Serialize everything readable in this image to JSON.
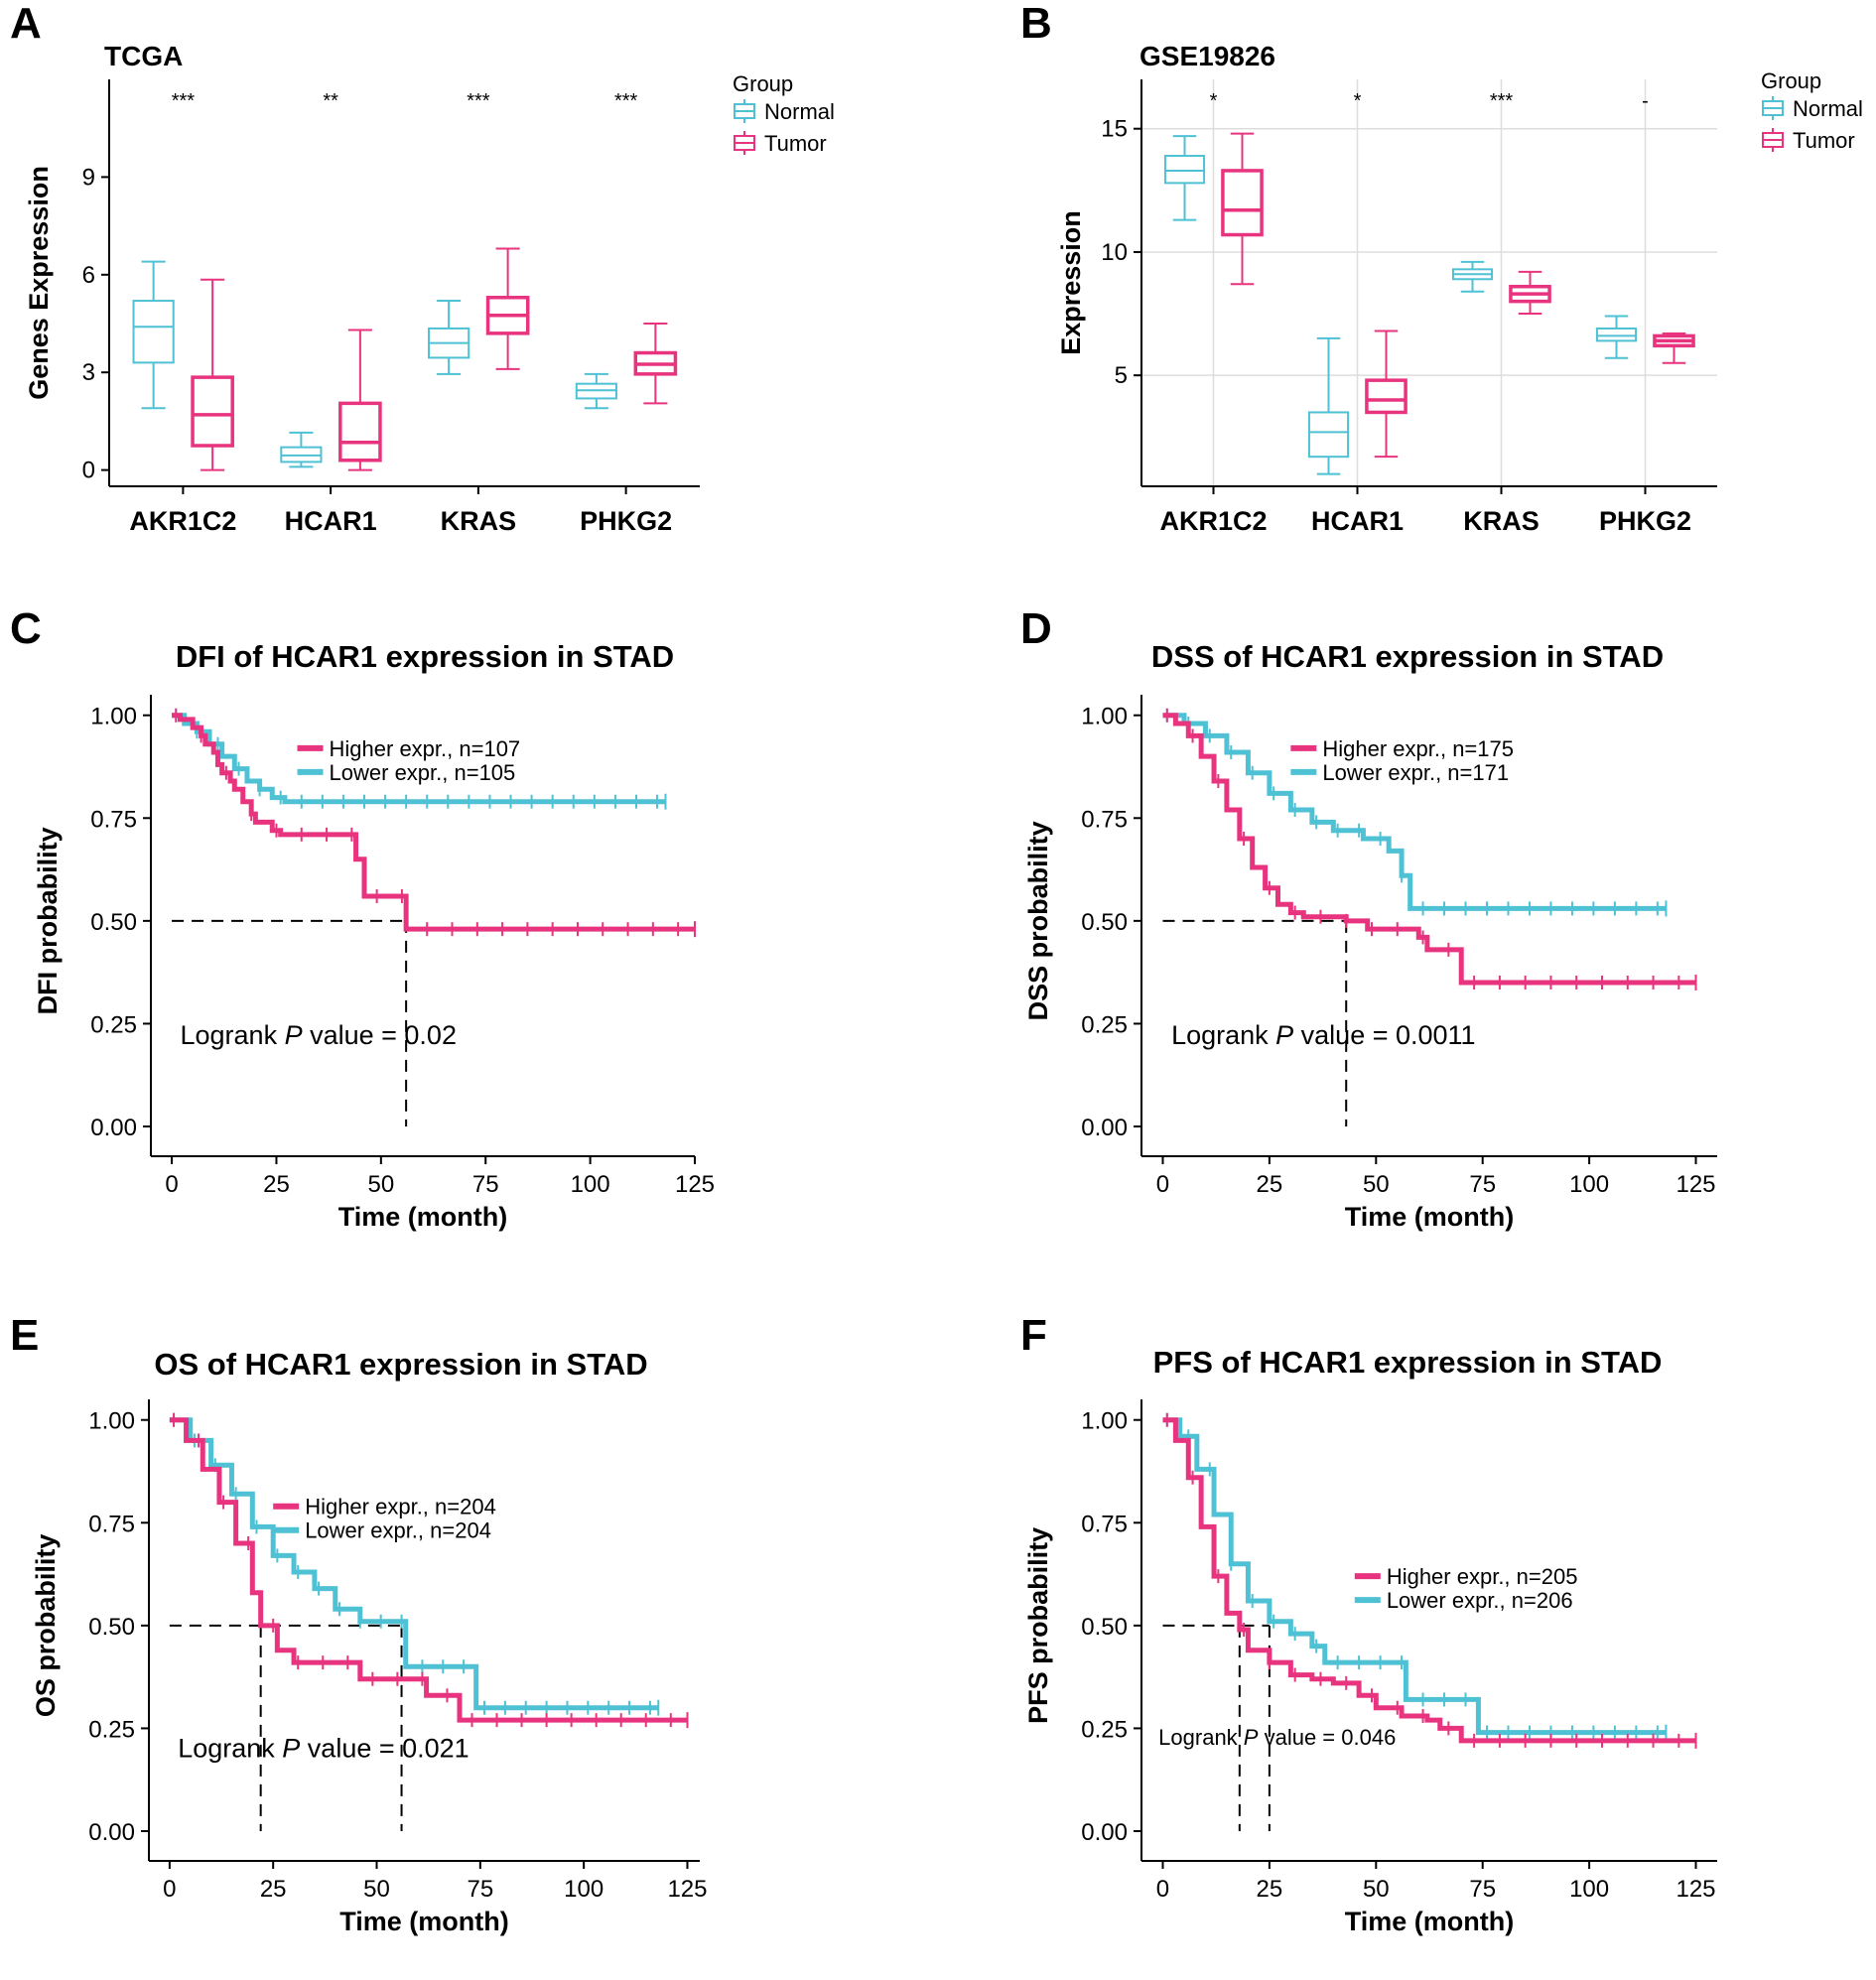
{
  "colors": {
    "normal": "#4fc1d4",
    "tumor": "#e8347f",
    "grid": "#dddddd",
    "axis": "#000000"
  },
  "chart_data": [
    {
      "type": "box",
      "letter": "A",
      "title": "TCGA",
      "xlabel": "",
      "ylabel": "Genes Expression",
      "ylim": [
        -0.5,
        12
      ],
      "yticks": [
        0,
        3,
        6,
        9
      ],
      "grid": false,
      "legend": {
        "title": "Group",
        "position": "right",
        "entries": [
          "Normal",
          "Tumor"
        ]
      },
      "categories": [
        "AKR1C2",
        "HCAR1",
        "KRAS",
        "PHKG2"
      ],
      "significance": [
        "***",
        "**",
        "***",
        "***"
      ],
      "series": [
        {
          "name": "Normal",
          "color": "#4fc1d4",
          "boxes": [
            {
              "min": 1.9,
              "q1": 3.3,
              "median": 4.4,
              "q3": 5.2,
              "max": 6.4
            },
            {
              "min": 0.1,
              "q1": 0.25,
              "median": 0.45,
              "q3": 0.7,
              "max": 1.15
            },
            {
              "min": 2.95,
              "q1": 3.45,
              "median": 3.9,
              "q3": 4.35,
              "max": 5.2
            },
            {
              "min": 1.9,
              "q1": 2.2,
              "median": 2.45,
              "q3": 2.65,
              "max": 2.95
            }
          ]
        },
        {
          "name": "Tumor",
          "color": "#e8347f",
          "boxes": [
            {
              "min": 0.0,
              "q1": 0.75,
              "median": 1.7,
              "q3": 2.85,
              "max": 5.85
            },
            {
              "min": 0.0,
              "q1": 0.3,
              "median": 0.85,
              "q3": 2.05,
              "max": 4.3
            },
            {
              "min": 3.1,
              "q1": 4.2,
              "median": 4.75,
              "q3": 5.3,
              "max": 6.8
            },
            {
              "min": 2.05,
              "q1": 2.95,
              "median": 3.25,
              "q3": 3.6,
              "max": 4.5
            }
          ]
        }
      ]
    },
    {
      "type": "box",
      "letter": "B",
      "title": "GSE19826",
      "xlabel": "",
      "ylabel": "Expression",
      "ylim": [
        0.5,
        17
      ],
      "yticks": [
        5,
        10,
        15
      ],
      "grid": true,
      "legend": {
        "title": "Group",
        "position": "right",
        "entries": [
          "Normal",
          "Tumor"
        ]
      },
      "categories": [
        "AKR1C2",
        "HCAR1",
        "KRAS",
        "PHKG2"
      ],
      "significance": [
        "*",
        "*",
        "***",
        "-"
      ],
      "series": [
        {
          "name": "Normal",
          "color": "#4fc1d4",
          "boxes": [
            {
              "min": 11.3,
              "q1": 12.8,
              "median": 13.3,
              "q3": 13.9,
              "max": 14.7
            },
            {
              "min": 1.0,
              "q1": 1.7,
              "median": 2.7,
              "q3": 3.5,
              "max": 6.5
            },
            {
              "min": 8.4,
              "q1": 8.9,
              "median": 9.1,
              "q3": 9.3,
              "max": 9.6
            },
            {
              "min": 5.7,
              "q1": 6.4,
              "median": 6.6,
              "q3": 6.9,
              "max": 7.4
            }
          ]
        },
        {
          "name": "Tumor",
          "color": "#e8347f",
          "boxes": [
            {
              "min": 8.7,
              "q1": 10.7,
              "median": 11.7,
              "q3": 13.3,
              "max": 14.8
            },
            {
              "min": 1.7,
              "q1": 3.5,
              "median": 4.0,
              "q3": 4.8,
              "max": 6.8
            },
            {
              "min": 7.5,
              "q1": 8.0,
              "median": 8.3,
              "q3": 8.6,
              "max": 9.2
            },
            {
              "min": 5.5,
              "q1": 6.2,
              "median": 6.4,
              "q3": 6.6,
              "max": 6.7
            }
          ]
        }
      ]
    },
    {
      "type": "line",
      "subtype": "kaplan-meier",
      "letter": "C",
      "title": "DFI of HCAR1 expression in STAD",
      "xlabel": "Time (month)",
      "ylabel": "DFI probability",
      "xlim": [
        -5,
        125
      ],
      "ylim": [
        0,
        1.05
      ],
      "xticks": [
        0,
        25,
        50,
        75,
        100,
        125
      ],
      "yticks": [
        "0.00",
        "0.25",
        "0.50",
        "0.75",
        "1.00"
      ],
      "legend": {
        "position": "top-center"
      },
      "pvalue_text": {
        "prefix": "Logrank ",
        "p": "P",
        "suffix": " value = 0.02"
      },
      "median_lines": [
        56
      ],
      "series": [
        {
          "name": "Higher expr., n=107",
          "color": "#e8347f",
          "x": [
            0,
            2,
            5,
            7,
            8,
            10,
            11,
            12,
            14,
            15,
            17,
            19,
            20,
            24,
            26,
            28,
            44,
            46,
            54,
            56,
            125
          ],
          "y": [
            1.0,
            0.99,
            0.97,
            0.95,
            0.93,
            0.91,
            0.88,
            0.86,
            0.84,
            0.82,
            0.79,
            0.76,
            0.74,
            0.72,
            0.71,
            0.71,
            0.65,
            0.56,
            0.56,
            0.48,
            0.48
          ]
        },
        {
          "name": "Lower expr., n=105",
          "color": "#4fc1d4",
          "x": [
            0,
            3,
            6,
            9,
            12,
            15,
            18,
            21,
            24,
            27,
            118
          ],
          "y": [
            1.0,
            0.98,
            0.96,
            0.93,
            0.9,
            0.87,
            0.84,
            0.82,
            0.8,
            0.79,
            0.79
          ]
        }
      ]
    },
    {
      "type": "line",
      "subtype": "kaplan-meier",
      "letter": "D",
      "title": "DSS of HCAR1 expression in STAD",
      "xlabel": "Time (month)",
      "ylabel": "DSS probability",
      "xlim": [
        -5,
        130
      ],
      "ylim": [
        0,
        1.05
      ],
      "xticks": [
        0,
        25,
        50,
        75,
        100,
        125
      ],
      "yticks": [
        "0.00",
        "0.25",
        "0.50",
        "0.75",
        "1.00"
      ],
      "legend": {
        "position": "top-center"
      },
      "pvalue_text": {
        "prefix": "Logrank ",
        "p": "P",
        "suffix": " value = 0.0011"
      },
      "median_lines": [
        43
      ],
      "series": [
        {
          "name": "Higher expr., n=175",
          "color": "#e8347f",
          "x": [
            0,
            3,
            6,
            9,
            12,
            15,
            18,
            21,
            24,
            27,
            30,
            33,
            37,
            43,
            48,
            60,
            62,
            70,
            72,
            125
          ],
          "y": [
            1.0,
            0.98,
            0.95,
            0.9,
            0.84,
            0.77,
            0.7,
            0.63,
            0.58,
            0.54,
            0.52,
            0.51,
            0.51,
            0.5,
            0.48,
            0.46,
            0.43,
            0.35,
            0.35,
            0.35
          ]
        },
        {
          "name": "Lower expr., n=171",
          "color": "#4fc1d4",
          "x": [
            0,
            5,
            10,
            15,
            20,
            25,
            30,
            35,
            40,
            47,
            53,
            56,
            58,
            118
          ],
          "y": [
            1.0,
            0.98,
            0.95,
            0.91,
            0.86,
            0.81,
            0.77,
            0.74,
            0.72,
            0.7,
            0.67,
            0.61,
            0.53,
            0.53
          ]
        }
      ]
    },
    {
      "type": "line",
      "subtype": "kaplan-meier",
      "letter": "E",
      "title": "OS of HCAR1 expression in STAD",
      "xlabel": "Time (month)",
      "ylabel": "OS probability",
      "xlim": [
        -5,
        128
      ],
      "ylim": [
        0,
        1.05
      ],
      "xticks": [
        0,
        25,
        50,
        75,
        100,
        125
      ],
      "yticks": [
        "0.00",
        "0.25",
        "0.50",
        "0.75",
        "1.00"
      ],
      "legend": {
        "position": "top-center"
      },
      "pvalue_text": {
        "prefix": "Logrank ",
        "p": "P",
        "suffix": " value = 0.021"
      },
      "median_lines": [
        22,
        56
      ],
      "series": [
        {
          "name": "Higher expr., n=204",
          "color": "#e8347f",
          "x": [
            0,
            4,
            8,
            12,
            16,
            20,
            22,
            26,
            30,
            40,
            46,
            56,
            62,
            70,
            80,
            125
          ],
          "y": [
            1.0,
            0.95,
            0.88,
            0.8,
            0.7,
            0.58,
            0.5,
            0.44,
            0.41,
            0.41,
            0.37,
            0.37,
            0.33,
            0.27,
            0.27,
            0.27
          ]
        },
        {
          "name": "Lower expr., n=204",
          "color": "#4fc1d4",
          "x": [
            0,
            5,
            10,
            15,
            20,
            25,
            30,
            35,
            40,
            46,
            56,
            57,
            72,
            74,
            118
          ],
          "y": [
            1.0,
            0.95,
            0.89,
            0.82,
            0.74,
            0.67,
            0.63,
            0.59,
            0.54,
            0.51,
            0.51,
            0.4,
            0.4,
            0.3,
            0.3
          ]
        }
      ]
    },
    {
      "type": "line",
      "subtype": "kaplan-meier",
      "letter": "F",
      "title": "PFS of HCAR1 expression in STAD",
      "xlabel": "Time (month)",
      "ylabel": "PFS probability",
      "xlim": [
        -5,
        130
      ],
      "ylim": [
        0,
        1.05
      ],
      "xticks": [
        0,
        25,
        50,
        75,
        100,
        125
      ],
      "yticks": [
        "0.00",
        "0.25",
        "0.50",
        "0.75",
        "1.00"
      ],
      "legend": {
        "position": "center-right"
      },
      "pvalue_text": {
        "prefix": "Logrank ",
        "p": "P",
        "suffix": " value = 0.046"
      },
      "median_lines": [
        18,
        25
      ],
      "series": [
        {
          "name": "Higher expr., n=205",
          "color": "#e8347f",
          "x": [
            0,
            3,
            6,
            9,
            12,
            15,
            18,
            20,
            25,
            30,
            35,
            40,
            46,
            50,
            56,
            62,
            65,
            70,
            125
          ],
          "y": [
            1.0,
            0.95,
            0.86,
            0.74,
            0.62,
            0.53,
            0.49,
            0.44,
            0.41,
            0.38,
            0.37,
            0.36,
            0.33,
            0.3,
            0.28,
            0.27,
            0.25,
            0.22,
            0.22
          ]
        },
        {
          "name": "Lower expr., n=206",
          "color": "#4fc1d4",
          "x": [
            0,
            4,
            8,
            12,
            16,
            20,
            25,
            30,
            35,
            38,
            56,
            57,
            73,
            74,
            118
          ],
          "y": [
            1.0,
            0.96,
            0.88,
            0.77,
            0.65,
            0.56,
            0.51,
            0.48,
            0.45,
            0.41,
            0.41,
            0.32,
            0.32,
            0.24,
            0.24
          ]
        }
      ]
    }
  ]
}
